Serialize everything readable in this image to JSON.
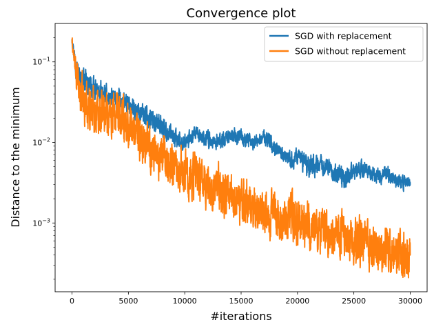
{
  "chart_data": {
    "type": "line",
    "title": "Convergence plot",
    "xlabel": "#iterations",
    "ylabel": "Distance to the minimum",
    "xlim": [
      -1500,
      31500
    ],
    "ylim": [
      0.00014,
      0.3
    ],
    "yscale": "log",
    "grid": false,
    "legend_position": "top-right",
    "xticks": [
      0,
      5000,
      10000,
      15000,
      20000,
      25000,
      30000
    ],
    "xtick_labels": [
      "0",
      "5000",
      "10000",
      "15000",
      "20000",
      "25000",
      "30000"
    ],
    "yticks": [
      0.001,
      0.01,
      0.1
    ],
    "ytick_labels": [
      "10−3",
      "10−2",
      "10−1"
    ],
    "series": [
      {
        "name": "SGD with replacement",
        "color": "#1f77b4",
        "x": [
          0,
          300,
          600,
          1000,
          1500,
          2000,
          2500,
          3000,
          4000,
          5000,
          6000,
          7000,
          8000,
          9000,
          10000,
          11000,
          12000,
          13000,
          14000,
          15000,
          16000,
          17000,
          18000,
          19000,
          20000,
          21000,
          22000,
          23000,
          24000,
          25000,
          26000,
          27000,
          28000,
          29000,
          30000
        ],
        "y": [
          0.2,
          0.1,
          0.07,
          0.06,
          0.05,
          0.045,
          0.04,
          0.037,
          0.033,
          0.028,
          0.024,
          0.02,
          0.016,
          0.011,
          0.01,
          0.0125,
          0.011,
          0.01,
          0.012,
          0.0115,
          0.0095,
          0.012,
          0.0085,
          0.006,
          0.0065,
          0.0052,
          0.0055,
          0.0045,
          0.0036,
          0.0042,
          0.0048,
          0.0038,
          0.0042,
          0.0032,
          0.0033
        ],
        "band": [
          1.2,
          1.4,
          1.45,
          1.45,
          1.45,
          1.45,
          1.45,
          1.45,
          1.45,
          1.45,
          1.45,
          1.45,
          1.45,
          1.4,
          1.35,
          1.3,
          1.3,
          1.3,
          1.3,
          1.3,
          1.3,
          1.3,
          1.35,
          1.35,
          1.35,
          1.6,
          1.35,
          1.35,
          1.5,
          1.35,
          1.3,
          1.3,
          1.3,
          1.3,
          1.2
        ]
      },
      {
        "name": "SGD without replacement",
        "color": "#ff7f0e",
        "x": [
          0,
          300,
          600,
          1000,
          1500,
          2000,
          3000,
          4000,
          5000,
          6000,
          7000,
          8000,
          9000,
          10000,
          11000,
          12000,
          13000,
          14000,
          15000,
          16000,
          17000,
          18000,
          19000,
          20000,
          21000,
          22000,
          23000,
          24000,
          25000,
          26000,
          27000,
          28000,
          29000,
          30000
        ],
        "y": [
          0.18,
          0.08,
          0.045,
          0.032,
          0.028,
          0.026,
          0.024,
          0.02,
          0.016,
          0.012,
          0.0085,
          0.0068,
          0.0055,
          0.0045,
          0.0036,
          0.003,
          0.0025,
          0.0021,
          0.0018,
          0.0016,
          0.0014,
          0.0013,
          0.0012,
          0.00105,
          0.00092,
          0.00082,
          0.00074,
          0.00066,
          0.0006,
          0.00054,
          0.0005,
          0.00046,
          0.00043,
          0.0004
        ],
        "band": [
          1.2,
          1.6,
          2.0,
          2.2,
          2.2,
          2.2,
          2.2,
          2.2,
          2.2,
          2.2,
          2.2,
          2.2,
          2.2,
          2.2,
          2.2,
          2.2,
          2.2,
          2.2,
          2.2,
          2.2,
          2.2,
          2.2,
          2.2,
          2.2,
          2.2,
          2.2,
          2.2,
          2.2,
          2.2,
          2.2,
          2.2,
          2.2,
          2.2,
          2.2
        ]
      }
    ]
  }
}
